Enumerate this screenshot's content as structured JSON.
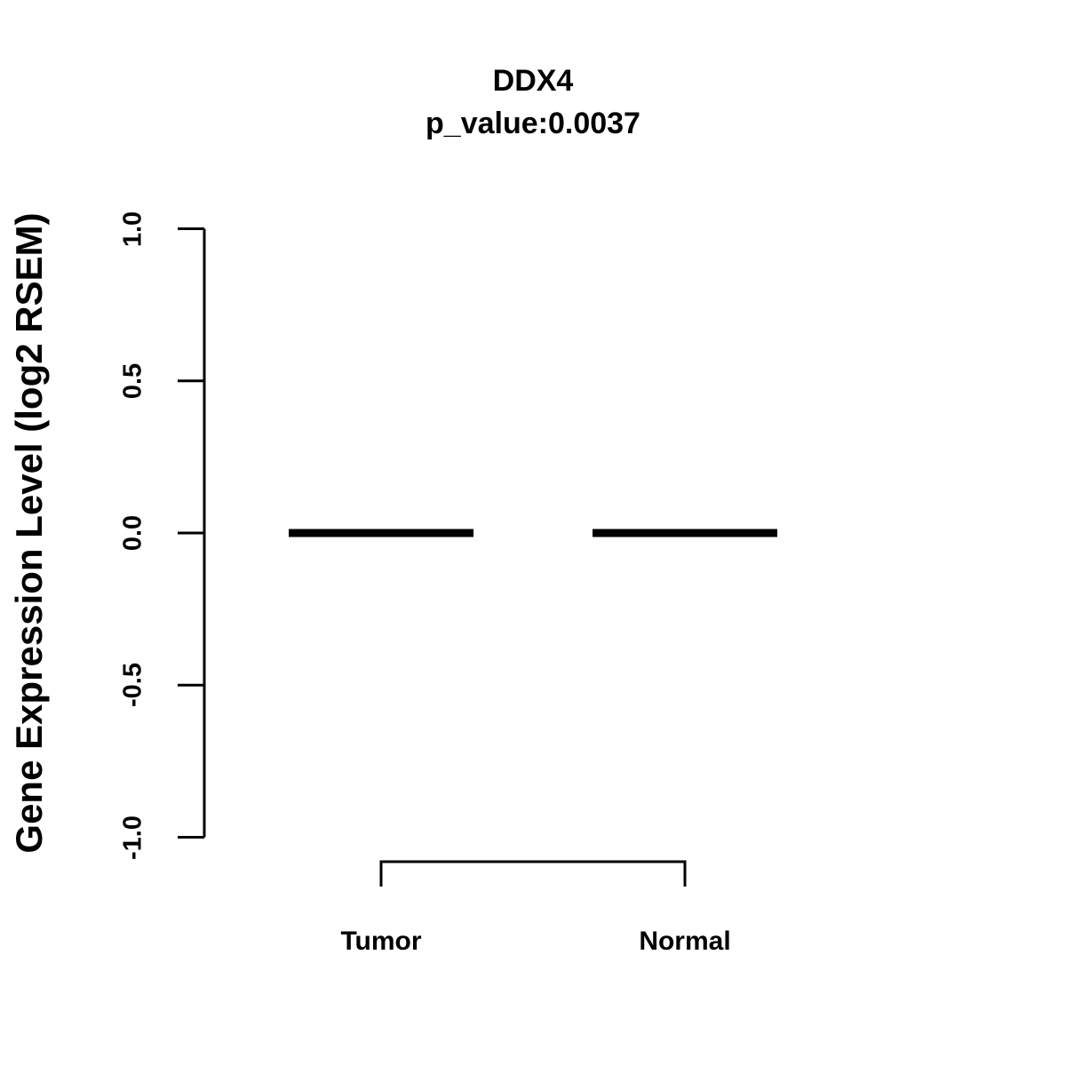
{
  "page": {
    "background": "#ffffff",
    "foreground": "#000000"
  },
  "chart_data": {
    "type": "boxplot",
    "title": "DDX4",
    "subtitle": "p_value:0.0037",
    "gene": "DDX4",
    "p_value": 0.0037,
    "ylabel": "Gene Expression Level (log2 RSEM)",
    "xlabel": "",
    "categories": [
      "Tumor",
      "Normal"
    ],
    "series": [
      {
        "name": "Tumor",
        "median": 0.0,
        "q1": 0.0,
        "q3": 0.0,
        "whisker_low": 0.0,
        "whisker_high": 0.0
      },
      {
        "name": "Normal",
        "median": 0.0,
        "q1": 0.0,
        "q3": 0.0,
        "whisker_low": 0.0,
        "whisker_high": 0.0
      }
    ],
    "ylim": [
      -1.0,
      1.0
    ],
    "yticks": [
      1.0,
      0.5,
      0.0,
      -0.5,
      -1.0
    ],
    "ytick_labels": [
      "1.0",
      "0.5",
      "0.0",
      "-0.5",
      "-1.0"
    ],
    "grid": false,
    "legend": null,
    "comparison_bracket": {
      "from": "Tumor",
      "to": "Normal"
    },
    "line_color": "#000000",
    "background": "#ffffff"
  }
}
